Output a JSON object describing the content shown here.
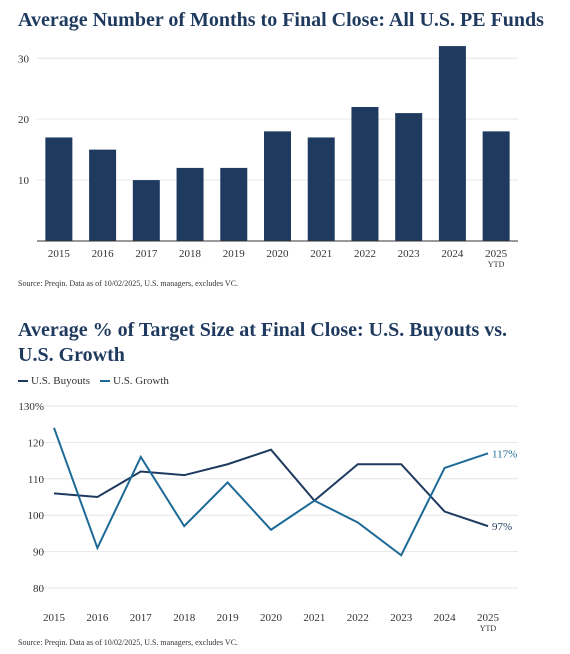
{
  "chart_data": [
    {
      "type": "bar",
      "title": "Average Number of Months to Final Close: All U.S. PE Funds",
      "categories": [
        "2015",
        "2016",
        "2017",
        "2018",
        "2019",
        "2020",
        "2021",
        "2022",
        "2023",
        "2024",
        "2025"
      ],
      "category_sublabels": [
        "",
        "",
        "",
        "",
        "",
        "",
        "",
        "",
        "",
        "",
        "YTD"
      ],
      "values": [
        17,
        15,
        10,
        12,
        12,
        18,
        17,
        22,
        21,
        32,
        18
      ],
      "yticks": [
        10,
        20,
        30
      ],
      "ylim": [
        0,
        33
      ],
      "grid": true,
      "color": "#1f3a5f",
      "source": "Source: Preqin. Data as of 10/02/2025, U.S. managers, excludes VC."
    },
    {
      "type": "line",
      "title": "Average % of Target Size at Final Close: U.S. Buyouts vs. U.S. Growth",
      "x": [
        "2015",
        "2016",
        "2017",
        "2018",
        "2019",
        "2020",
        "2021",
        "2022",
        "2023",
        "2024",
        "2025"
      ],
      "x_sublabels": [
        "",
        "",
        "",
        "",
        "",
        "",
        "",
        "",
        "",
        "",
        "YTD"
      ],
      "series": [
        {
          "name": "U.S. Buyouts",
          "color": "#1f3a5f",
          "values": [
            106,
            105,
            112,
            111,
            114,
            118,
            104,
            114,
            114,
            101,
            97
          ],
          "end_label": "97%"
        },
        {
          "name": "U.S. Growth",
          "color": "#1d6a96",
          "values": [
            124,
            91,
            116,
            97,
            109,
            96,
            104,
            98,
            89,
            113,
            117
          ],
          "end_label": "117%"
        }
      ],
      "yticks": [
        "80",
        "90",
        "100",
        "110",
        "120",
        "130%"
      ],
      "ylim": [
        78,
        132
      ],
      "grid": true,
      "legend": "top-left",
      "source": "Source: Preqin. Data as of 10/02/2025, U.S. managers, excludes VC."
    }
  ]
}
